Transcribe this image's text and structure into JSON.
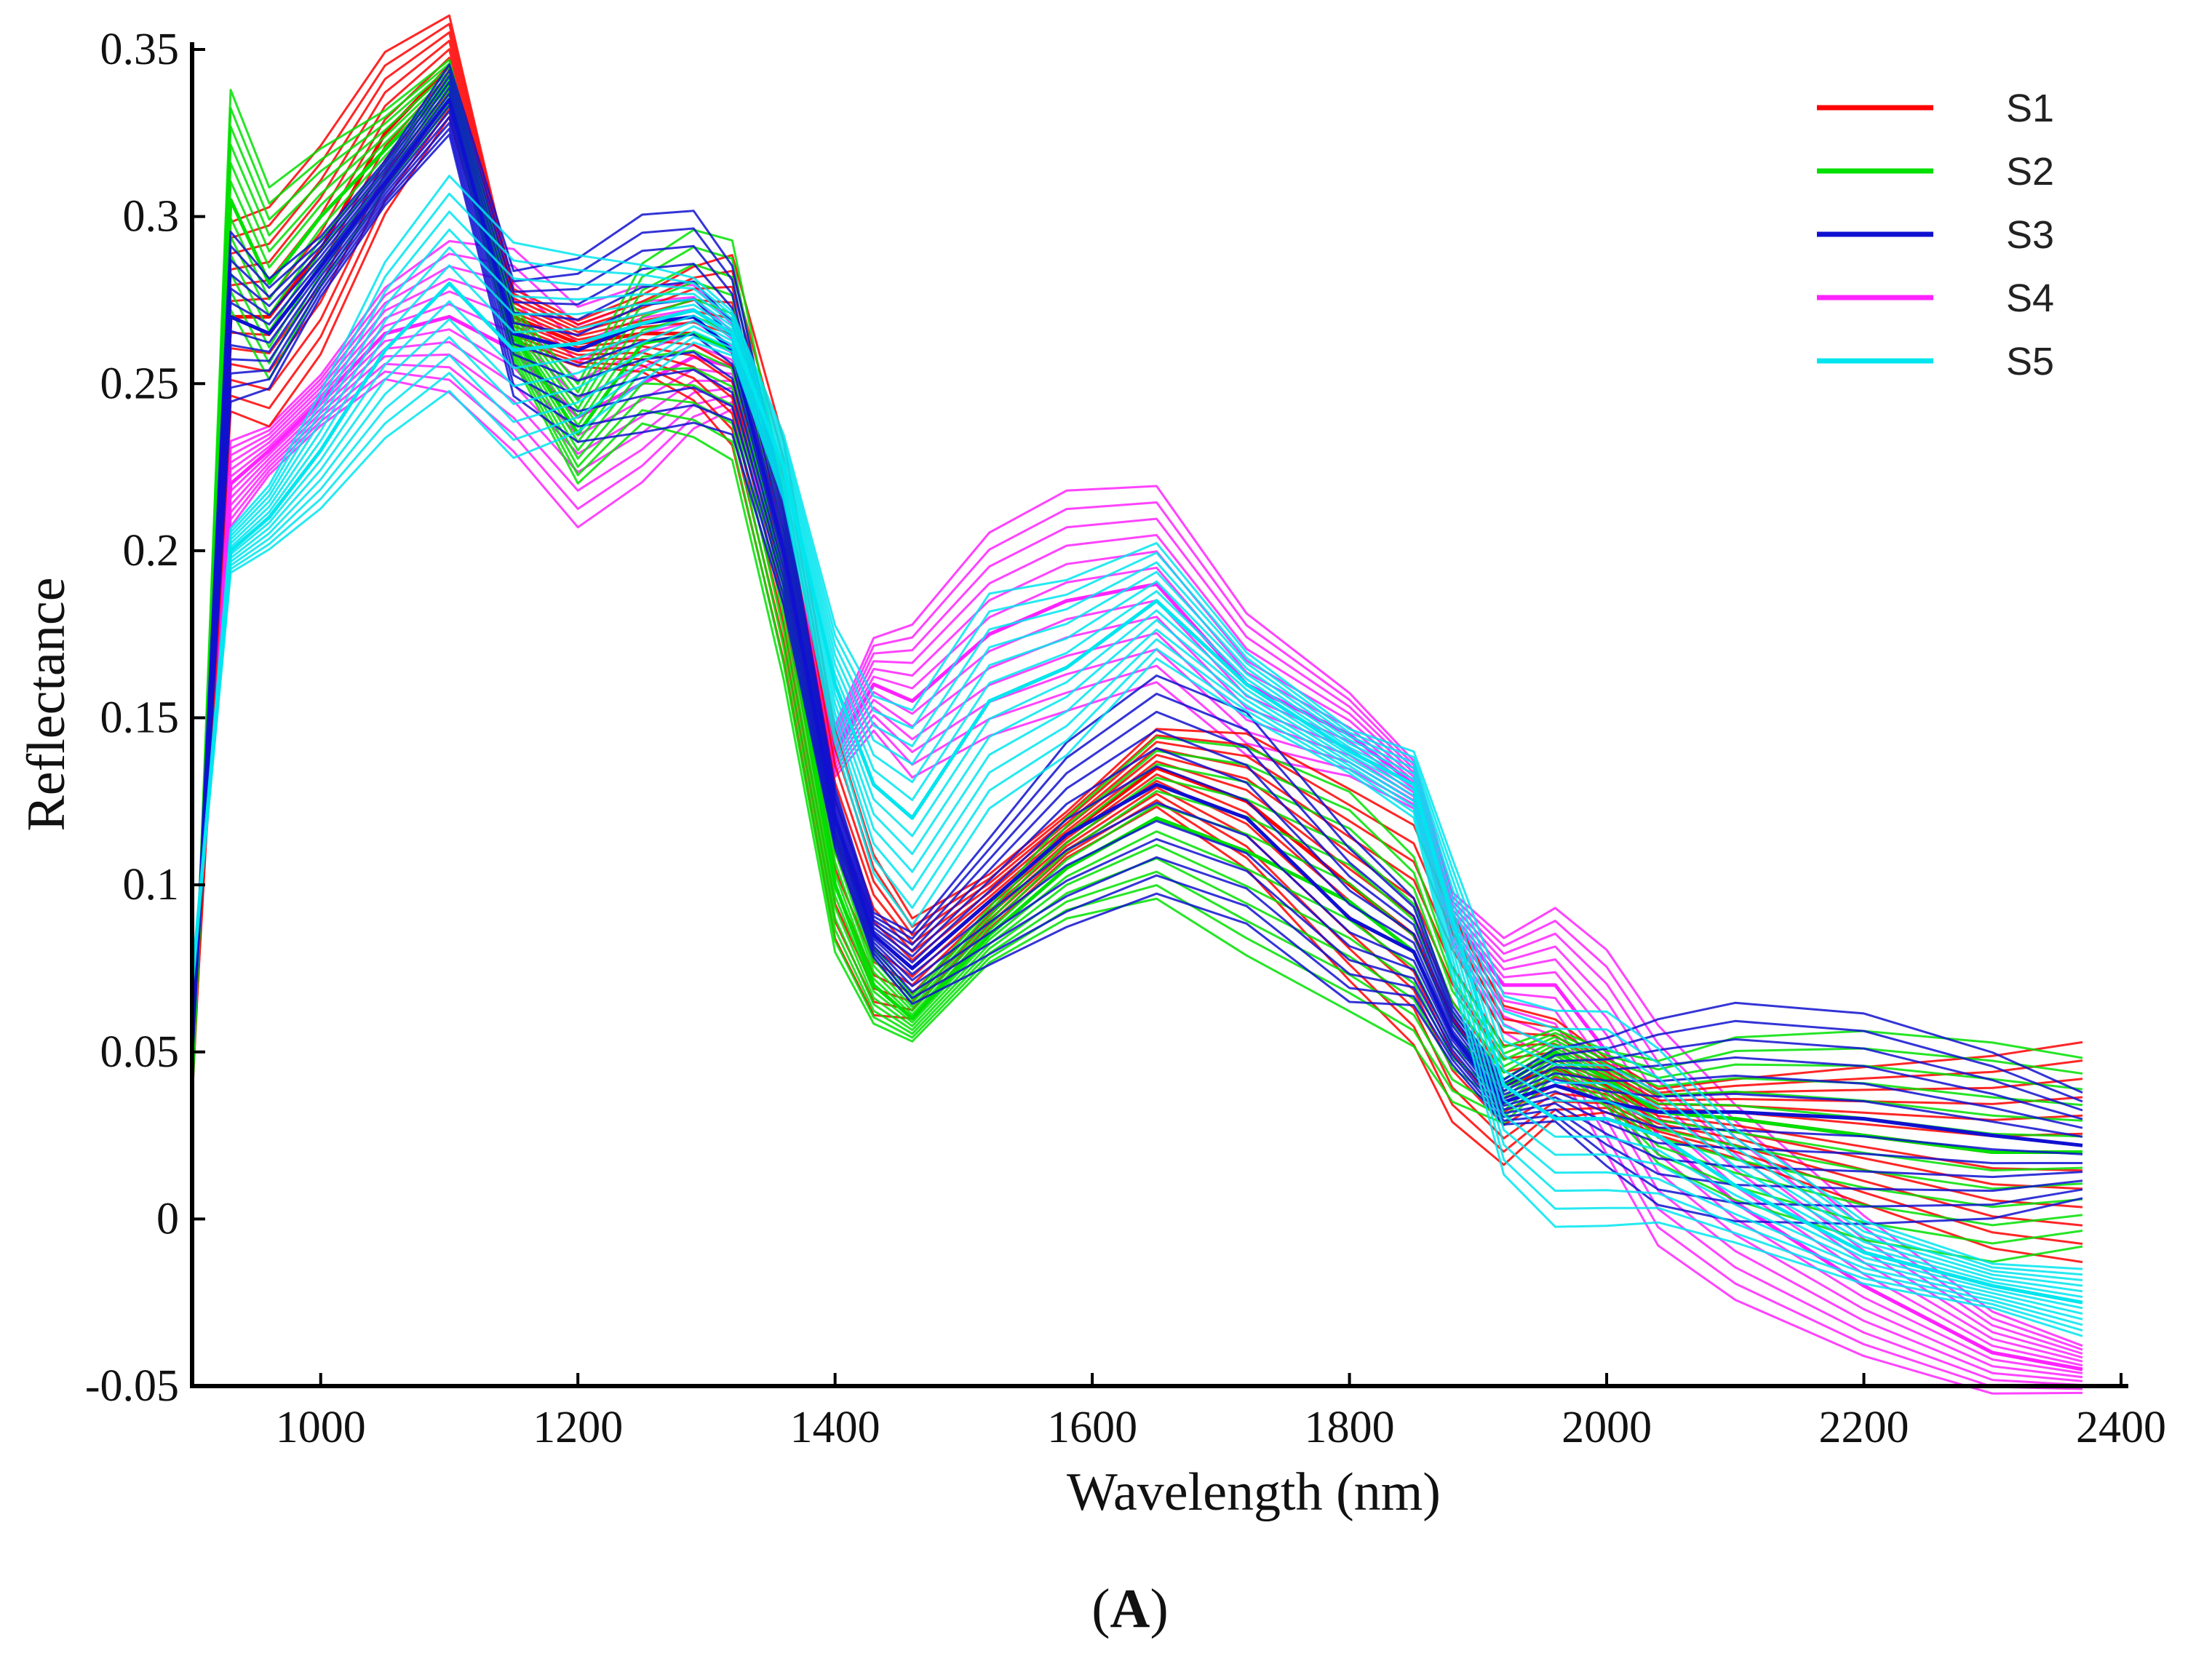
{
  "chart_data": {
    "type": "line",
    "title": "",
    "xlabel": "Wavelength (nm)",
    "ylabel": "Reflectance",
    "xlim": [
      900,
      2400
    ],
    "ylim": [
      -0.05,
      0.35
    ],
    "grid": false,
    "legend_position": "top-right",
    "panel_label": "A",
    "x_ticks": [
      1000,
      1200,
      1400,
      1600,
      1800,
      2000,
      2200,
      2400
    ],
    "x_tick_labels": [
      "1000",
      "1200",
      "1400",
      "1600",
      "1800",
      "2000",
      "2200",
      "2400"
    ],
    "y_ticks": [
      -0.05,
      0,
      0.05,
      0.1,
      0.15,
      0.2,
      0.25,
      0.3,
      0.35
    ],
    "y_tick_labels": [
      "-0.05",
      "0",
      "0.05",
      "0.1",
      "0.15",
      "0.2",
      "0.25",
      "0.3",
      "0.35"
    ],
    "x": [
      900,
      930,
      960,
      1000,
      1050,
      1100,
      1150,
      1200,
      1250,
      1290,
      1320,
      1360,
      1400,
      1430,
      1460,
      1520,
      1580,
      1650,
      1720,
      1800,
      1850,
      1880,
      1920,
      1960,
      2000,
      2040,
      2100,
      2200,
      2300,
      2370
    ],
    "series": [
      {
        "name": "S1",
        "color": "#ff0000",
        "values": [
          0.04,
          0.27,
          0.27,
          0.29,
          0.325,
          0.345,
          0.27,
          0.262,
          0.265,
          0.265,
          0.26,
          0.2,
          0.115,
          0.085,
          0.075,
          0.095,
          0.115,
          0.135,
          0.125,
          0.1,
          0.085,
          0.06,
          0.04,
          0.045,
          0.04,
          0.032,
          0.03,
          0.025,
          0.02,
          0.02
        ]
      },
      {
        "name": "S2",
        "color": "#00e000",
        "values": [
          0.04,
          0.305,
          0.28,
          0.3,
          0.32,
          0.34,
          0.265,
          0.235,
          0.262,
          0.265,
          0.26,
          0.19,
          0.1,
          0.07,
          0.06,
          0.085,
          0.105,
          0.12,
          0.11,
          0.095,
          0.08,
          0.055,
          0.04,
          0.05,
          0.042,
          0.032,
          0.03,
          0.025,
          0.02,
          0.02
        ]
      },
      {
        "name": "S3",
        "color": "#1010d0",
        "values": [
          0.05,
          0.27,
          0.265,
          0.285,
          0.31,
          0.335,
          0.265,
          0.26,
          0.268,
          0.27,
          0.26,
          0.2,
          0.12,
          0.085,
          0.075,
          0.095,
          0.115,
          0.13,
          0.12,
          0.09,
          0.08,
          0.055,
          0.035,
          0.04,
          0.035,
          0.032,
          0.032,
          0.03,
          0.025,
          0.022
        ]
      },
      {
        "name": "S4",
        "color": "#ff22ff",
        "values": [
          0.06,
          0.22,
          0.23,
          0.245,
          0.265,
          0.27,
          0.26,
          0.24,
          0.25,
          0.258,
          0.255,
          0.2,
          0.14,
          0.16,
          0.155,
          0.175,
          0.185,
          0.19,
          0.16,
          0.145,
          0.13,
          0.09,
          0.07,
          0.07,
          0.05,
          0.025,
          0.005,
          -0.02,
          -0.04,
          -0.045
        ]
      },
      {
        "name": "S5",
        "color": "#00e5ee",
        "values": [
          0.07,
          0.2,
          0.21,
          0.23,
          0.26,
          0.28,
          0.26,
          0.262,
          0.268,
          0.272,
          0.265,
          0.225,
          0.16,
          0.13,
          0.12,
          0.155,
          0.165,
          0.185,
          0.16,
          0.14,
          0.13,
          0.09,
          0.04,
          0.03,
          0.03,
          0.025,
          0.01,
          -0.01,
          -0.02,
          -0.025
        ]
      }
    ]
  }
}
